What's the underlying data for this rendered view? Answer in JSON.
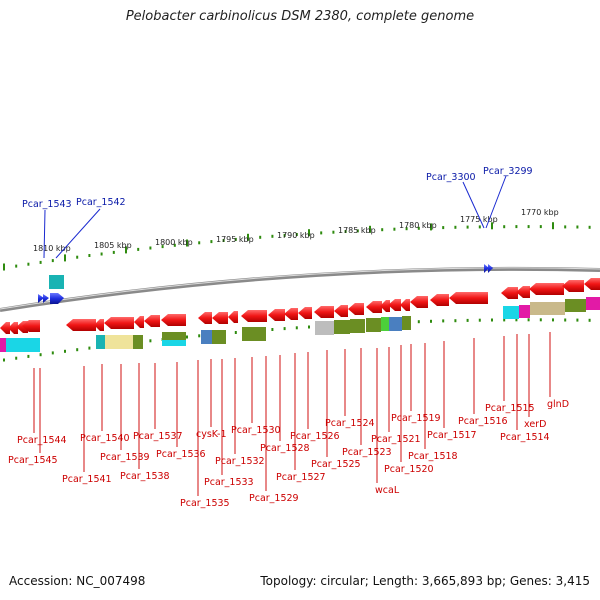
{
  "title": "Pelobacter carbinolicus DSM 2380, complete genome",
  "footer": {
    "accession": "Accession: NC_007498",
    "topology": "Topology: circular; Length: 3,665,893 bp; Genes: 3,415"
  },
  "colors": {
    "forward_gene": "#1f2fe0",
    "reverse_gene": "#f01515",
    "tick": "#2e8b0e",
    "genome_line": "#8a8a8a",
    "forward_label": "#0a1aa8",
    "reverse_label": "#cc0000"
  },
  "scale": {
    "ticks": [
      {
        "label": "1810 kbp",
        "kbp": 1810
      },
      {
        "label": "1805 kbp",
        "kbp": 1805
      },
      {
        "label": "1800 kbp",
        "kbp": 1800
      },
      {
        "label": "1795 kbp",
        "kbp": 1795
      },
      {
        "label": "1790 kbp",
        "kbp": 1790
      },
      {
        "label": "1785 kbp",
        "kbp": 1785
      },
      {
        "label": "1780 kbp",
        "kbp": 1780
      },
      {
        "label": "1775 kbp",
        "kbp": 1775
      },
      {
        "label": "1770 kbp",
        "kbp": 1770
      }
    ]
  },
  "forward_labels": [
    "Pcar_1543",
    "Pcar_1542",
    "Pcar_3300",
    "Pcar_3299"
  ],
  "reverse_labels": [
    "Pcar_1544",
    "Pcar_1545",
    "Pcar_1541",
    "Pcar_1540",
    "Pcar_1539",
    "Pcar_1538",
    "Pcar_1537",
    "Pcar_1536",
    "Pcar_1535",
    "cysK-1",
    "Pcar_1533",
    "Pcar_1532",
    "Pcar_1530",
    "Pcar_1529",
    "Pcar_1528",
    "Pcar_1527",
    "Pcar_1526",
    "Pcar_1525",
    "Pcar_1524",
    "Pcar_1523",
    "wcaL",
    "Pcar_1521",
    "Pcar_1520",
    "Pcar_1519",
    "Pcar_1518",
    "Pcar_1517",
    "Pcar_1516",
    "Pcar_1515",
    "Pcar_1514",
    "xerD",
    "glnD"
  ]
}
